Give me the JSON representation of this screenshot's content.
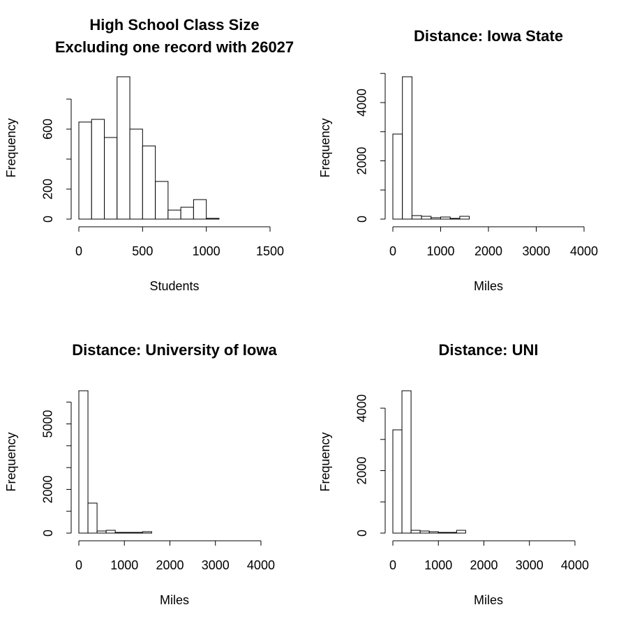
{
  "chart_data": [
    {
      "type": "histogram",
      "title": [
        "High School Class Size",
        "Excluding one record with 26027"
      ],
      "xlabel": "Students",
      "ylabel": "Frequency",
      "bins": [
        0,
        100,
        200,
        300,
        400,
        500,
        600,
        700,
        800,
        900,
        1000,
        1100,
        1200,
        1300,
        1400,
        1500
      ],
      "counts": [
        647,
        665,
        544,
        949,
        600,
        488,
        251,
        60,
        79,
        130,
        5,
        0,
        0,
        0,
        0
      ],
      "xlim": [
        0,
        1500
      ],
      "ylim": [
        0,
        949
      ],
      "xticks": [
        0,
        500,
        1000,
        1500
      ],
      "yticks": [
        0,
        200,
        600
      ],
      "yticks_minor": [
        400,
        800
      ],
      "color": "#ffffff"
    },
    {
      "type": "histogram",
      "title": "Distance: Iowa State",
      "xlabel": "Miles",
      "ylabel": "Frequency",
      "bins": [
        0,
        200,
        400,
        600,
        800,
        1000,
        1200,
        1400,
        1600,
        1800,
        2000,
        2200,
        2400,
        2600,
        2800,
        3000,
        3200,
        3400,
        3600,
        3800,
        4000
      ],
      "counts": [
        2920,
        4886,
        120,
        96,
        48,
        72,
        24,
        96,
        0,
        0,
        0,
        0,
        0,
        0,
        0,
        0,
        0,
        0,
        0,
        0
      ],
      "xlim": [
        0,
        4000
      ],
      "ylim": [
        0,
        4886
      ],
      "xticks": [
        0,
        1000,
        2000,
        3000,
        4000
      ],
      "yticks": [
        0,
        2000,
        4000
      ],
      "yticks_minor": [
        1000,
        3000,
        5000
      ],
      "color": "#ffffff"
    },
    {
      "type": "histogram",
      "title": "Distance: University of Iowa",
      "xlabel": "Miles",
      "ylabel": "Frequency",
      "bins": [
        0,
        200,
        400,
        600,
        800,
        1000,
        1200,
        1400,
        1600,
        1800,
        2000,
        2200,
        2400,
        2600,
        2800,
        3000,
        3200,
        3400,
        3600,
        3800,
        4000,
        4200
      ],
      "counts": [
        6518,
        1374,
        96,
        128,
        32,
        32,
        32,
        64,
        0,
        0,
        0,
        0,
        0,
        0,
        0,
        0,
        0,
        0,
        0,
        0,
        0
      ],
      "xlim": [
        0,
        4200
      ],
      "ylim": [
        0,
        6518
      ],
      "xticks": [
        0,
        1000,
        2000,
        3000,
        4000
      ],
      "yticks": [
        0,
        2000,
        5000
      ],
      "yticks_minor": [
        1000,
        3000,
        4000,
        6000
      ],
      "color": "#ffffff"
    },
    {
      "type": "histogram",
      "title": "Distance: UNI",
      "xlabel": "Miles",
      "ylabel": "Frequency",
      "bins": [
        0,
        200,
        400,
        600,
        800,
        1000,
        1200,
        1400,
        1600,
        1800,
        2000,
        2200,
        2400,
        2600,
        2800,
        3000,
        3200,
        3400,
        3600,
        3800,
        4000,
        4200
      ],
      "counts": [
        3307,
        4559,
        89,
        67,
        45,
        22,
        22,
        89,
        0,
        0,
        0,
        0,
        0,
        0,
        0,
        0,
        0,
        0,
        0,
        0,
        0
      ],
      "xlim": [
        0,
        4200
      ],
      "ylim": [
        0,
        4559
      ],
      "xticks": [
        0,
        1000,
        2000,
        3000,
        4000
      ],
      "yticks": [
        0,
        2000,
        4000
      ],
      "yticks_minor": [
        1000,
        3000
      ],
      "color": "#ffffff"
    }
  ]
}
